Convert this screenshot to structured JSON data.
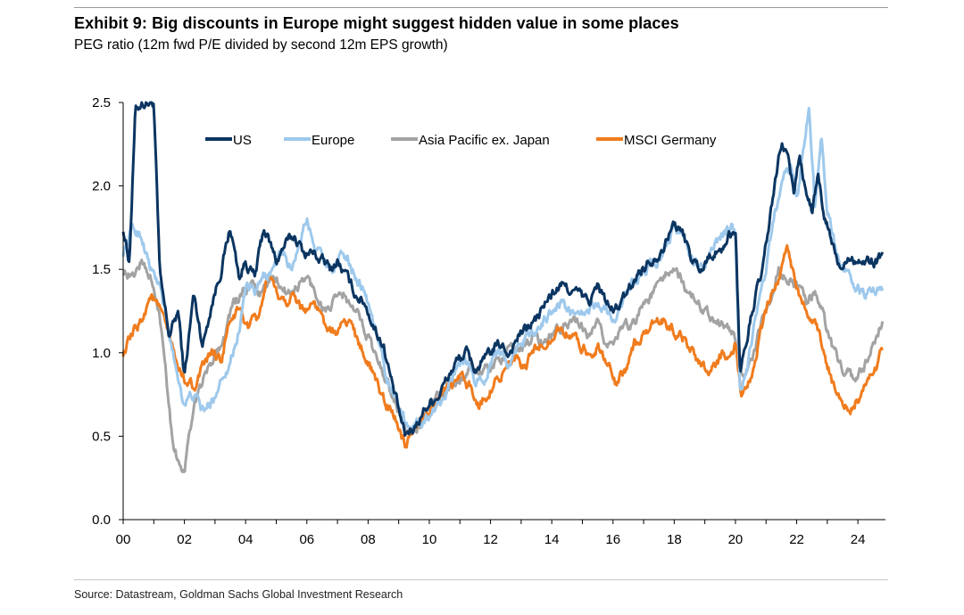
{
  "header": {
    "title": "Exhibit 9: Big discounts in Europe might suggest hidden value in some places",
    "subtitle": "PEG ratio (12m fwd P/E divided by second 12m EPS growth)"
  },
  "footer": {
    "source": "Source: Datastream, Goldman Sachs Global Investment Research"
  },
  "chart_data": {
    "type": "line",
    "title": "Exhibit 9: Big discounts in Europe might suggest hidden value in some places",
    "subtitle": "PEG ratio (12m fwd P/E divided by second 12m EPS growth)",
    "xlabel": "",
    "ylabel": "",
    "xlim": [
      2000,
      2024.9
    ],
    "ylim": [
      0,
      2.5
    ],
    "x_ticks": [
      2000,
      2002,
      2004,
      2006,
      2008,
      2010,
      2012,
      2014,
      2016,
      2018,
      2020,
      2022,
      2024
    ],
    "x_tick_labels": [
      "00",
      "02",
      "04",
      "06",
      "08",
      "10",
      "12",
      "14",
      "16",
      "18",
      "20",
      "22",
      "24"
    ],
    "y_ticks": [
      0,
      0.5,
      1.0,
      1.5,
      2.0,
      2.5
    ],
    "y_tick_labels": [
      "0.0",
      "0.5",
      "1.0",
      "1.5",
      "2.0",
      "2.5"
    ],
    "grid": false,
    "legend_position": "top",
    "series": [
      {
        "name": "US",
        "color": "#0b3561",
        "x": [
          2000,
          2000.2,
          2000.4,
          2000.6,
          2000.8,
          2001,
          2001.2,
          2001.5,
          2001.8,
          2002,
          2002.3,
          2002.6,
          2002.9,
          2003.2,
          2003.5,
          2003.8,
          2004,
          2004.3,
          2004.6,
          2004.8,
          2005,
          2005.3,
          2005.6,
          2005.9,
          2006.2,
          2006.5,
          2006.8,
          2007,
          2007.3,
          2007.6,
          2007.9,
          2008.2,
          2008.5,
          2008.8,
          2009,
          2009.2,
          2009.5,
          2009.8,
          2010,
          2010.3,
          2010.6,
          2010.9,
          2011.2,
          2011.5,
          2011.8,
          2012,
          2012.3,
          2012.6,
          2012.9,
          2013.2,
          2013.5,
          2013.8,
          2014,
          2014.3,
          2014.6,
          2014.9,
          2015.2,
          2015.5,
          2015.8,
          2016,
          2016.3,
          2016.6,
          2016.9,
          2017.2,
          2017.5,
          2017.8,
          2018,
          2018.3,
          2018.6,
          2018.9,
          2019.2,
          2019.5,
          2019.8,
          2020,
          2020.15,
          2020.3,
          2020.6,
          2020.9,
          2021.2,
          2021.5,
          2021.7,
          2021.9,
          2022.1,
          2022.3,
          2022.5,
          2022.7,
          2022.9,
          2023.1,
          2023.4,
          2023.7,
          2024,
          2024.3,
          2024.6,
          2024.8
        ],
        "values": [
          1.75,
          1.55,
          2.45,
          2.5,
          2.5,
          2.5,
          1.45,
          1.1,
          1.25,
          0.85,
          1.35,
          1.05,
          1.3,
          1.5,
          1.75,
          1.45,
          1.55,
          1.45,
          1.75,
          1.65,
          1.55,
          1.65,
          1.7,
          1.6,
          1.6,
          1.55,
          1.5,
          1.55,
          1.45,
          1.35,
          1.3,
          1.15,
          1.05,
          0.8,
          0.65,
          0.5,
          0.55,
          0.65,
          0.7,
          0.75,
          0.85,
          0.95,
          1.0,
          0.9,
          0.95,
          1.0,
          1.05,
          1.0,
          1.1,
          1.15,
          1.2,
          1.3,
          1.35,
          1.4,
          1.38,
          1.35,
          1.3,
          1.4,
          1.3,
          1.25,
          1.3,
          1.4,
          1.5,
          1.55,
          1.6,
          1.7,
          1.78,
          1.7,
          1.55,
          1.5,
          1.6,
          1.6,
          1.7,
          1.75,
          0.9,
          1.0,
          1.3,
          1.5,
          1.9,
          2.25,
          2.2,
          1.95,
          2.2,
          1.95,
          1.85,
          2.05,
          1.8,
          1.7,
          1.5,
          1.6,
          1.55,
          1.55,
          1.55,
          1.6
        ]
      },
      {
        "name": "Europe",
        "color": "#9ec9ec",
        "x": [
          2000,
          2000.3,
          2000.6,
          2000.9,
          2001.2,
          2001.5,
          2001.8,
          2002,
          2002.3,
          2002.6,
          2002.9,
          2003.2,
          2003.5,
          2003.8,
          2004,
          2004.3,
          2004.6,
          2004.9,
          2005.2,
          2005.5,
          2005.8,
          2006,
          2006.3,
          2006.6,
          2006.9,
          2007.2,
          2007.5,
          2007.8,
          2008,
          2008.3,
          2008.6,
          2008.9,
          2009.2,
          2009.5,
          2009.8,
          2010,
          2010.3,
          2010.6,
          2010.9,
          2011.2,
          2011.5,
          2011.8,
          2012,
          2012.3,
          2012.6,
          2012.9,
          2013.2,
          2013.5,
          2013.8,
          2014,
          2014.3,
          2014.6,
          2014.9,
          2015.2,
          2015.5,
          2015.8,
          2016,
          2016.3,
          2016.6,
          2016.9,
          2017.2,
          2017.5,
          2017.8,
          2018,
          2018.3,
          2018.6,
          2018.9,
          2019.2,
          2019.5,
          2019.8,
          2020,
          2020.15,
          2020.3,
          2020.6,
          2020.9,
          2021.2,
          2021.5,
          2021.8,
          2022,
          2022.2,
          2022.4,
          2022.6,
          2022.8,
          2023,
          2023.3,
          2023.6,
          2023.9,
          2024.2,
          2024.5,
          2024.8
        ],
        "values": [
          1.6,
          1.75,
          1.7,
          1.5,
          1.4,
          1.1,
          0.85,
          0.7,
          0.75,
          0.65,
          0.7,
          0.85,
          0.95,
          1.15,
          1.4,
          1.35,
          1.45,
          1.5,
          1.6,
          1.5,
          1.7,
          1.8,
          1.65,
          1.55,
          1.5,
          1.6,
          1.5,
          1.4,
          1.3,
          1.1,
          0.85,
          0.75,
          0.6,
          0.55,
          0.6,
          0.62,
          0.7,
          0.8,
          0.9,
          0.95,
          0.82,
          0.85,
          0.95,
          1.0,
          0.95,
          1.05,
          1.1,
          1.15,
          1.2,
          1.25,
          1.3,
          1.25,
          1.2,
          1.25,
          1.3,
          1.25,
          1.2,
          1.3,
          1.4,
          1.45,
          1.55,
          1.55,
          1.65,
          1.75,
          1.7,
          1.55,
          1.5,
          1.6,
          1.7,
          1.75,
          1.75,
          0.75,
          0.85,
          1.15,
          1.4,
          1.75,
          2.0,
          2.1,
          1.9,
          2.2,
          2.5,
          1.9,
          2.3,
          1.85,
          1.6,
          1.5,
          1.4,
          1.35,
          1.35,
          1.37
        ]
      },
      {
        "name": "Asia Pacific ex. Japan",
        "color": "#a3a3a3",
        "x": [
          2000,
          2000.3,
          2000.6,
          2000.9,
          2001.2,
          2001.4,
          2001.6,
          2001.8,
          2002,
          2002.2,
          2002.5,
          2002.8,
          2003,
          2003.3,
          2003.6,
          2003.9,
          2004.2,
          2004.5,
          2004.8,
          2005.1,
          2005.4,
          2005.7,
          2006,
          2006.3,
          2006.6,
          2006.9,
          2007.2,
          2007.5,
          2007.8,
          2008,
          2008.3,
          2008.6,
          2008.9,
          2009.2,
          2009.5,
          2009.8,
          2010.1,
          2010.4,
          2010.7,
          2011,
          2011.3,
          2011.6,
          2011.9,
          2012.2,
          2012.5,
          2012.8,
          2013.1,
          2013.4,
          2013.7,
          2014,
          2014.3,
          2014.6,
          2014.9,
          2015.2,
          2015.5,
          2015.8,
          2016.1,
          2016.4,
          2016.7,
          2017,
          2017.3,
          2017.6,
          2017.9,
          2018.2,
          2018.5,
          2018.8,
          2019.1,
          2019.4,
          2019.7,
          2020,
          2020.2,
          2020.5,
          2020.8,
          2021.1,
          2021.4,
          2021.7,
          2022,
          2022.3,
          2022.6,
          2022.9,
          2023.2,
          2023.5,
          2023.8,
          2024.1,
          2024.4,
          2024.8
        ],
        "values": [
          1.5,
          1.45,
          1.55,
          1.45,
          1.2,
          0.9,
          0.5,
          0.35,
          0.3,
          0.55,
          0.8,
          0.9,
          1.0,
          1.1,
          1.3,
          1.35,
          1.4,
          1.35,
          1.45,
          1.4,
          1.35,
          1.4,
          1.45,
          1.35,
          1.25,
          1.3,
          1.35,
          1.25,
          1.2,
          1.1,
          0.95,
          0.85,
          0.7,
          0.55,
          0.5,
          0.6,
          0.7,
          0.75,
          0.8,
          0.85,
          0.9,
          0.88,
          0.9,
          0.95,
          1.0,
          1.0,
          1.05,
          1.1,
          1.05,
          1.1,
          1.15,
          1.2,
          1.15,
          1.1,
          1.15,
          1.05,
          1.1,
          1.15,
          1.2,
          1.3,
          1.35,
          1.45,
          1.5,
          1.45,
          1.35,
          1.3,
          1.25,
          1.2,
          1.15,
          1.1,
          0.85,
          0.95,
          1.15,
          1.3,
          1.5,
          1.45,
          1.4,
          1.3,
          1.35,
          1.2,
          1.0,
          0.9,
          0.85,
          0.9,
          1.0,
          1.2
        ]
      },
      {
        "name": "MSCI Germany",
        "color": "#f07c1e",
        "x": [
          2000,
          2000.3,
          2000.6,
          2000.9,
          2001.2,
          2001.5,
          2001.8,
          2002,
          2002.3,
          2002.6,
          2002.9,
          2003.2,
          2003.5,
          2003.8,
          2004.1,
          2004.4,
          2004.7,
          2005,
          2005.3,
          2005.6,
          2005.9,
          2006.2,
          2006.5,
          2006.8,
          2007.1,
          2007.4,
          2007.7,
          2008,
          2008.3,
          2008.6,
          2008.9,
          2009.2,
          2009.5,
          2009.8,
          2010.1,
          2010.4,
          2010.7,
          2011,
          2011.3,
          2011.6,
          2011.9,
          2012.2,
          2012.5,
          2012.8,
          2013.1,
          2013.4,
          2013.7,
          2014,
          2014.3,
          2014.6,
          2014.9,
          2015.2,
          2015.5,
          2015.8,
          2016.1,
          2016.4,
          2016.7,
          2017,
          2017.3,
          2017.6,
          2017.9,
          2018.2,
          2018.5,
          2018.8,
          2019.1,
          2019.4,
          2019.7,
          2020,
          2020.2,
          2020.5,
          2020.8,
          2021.1,
          2021.4,
          2021.7,
          2022,
          2022.3,
          2022.6,
          2022.9,
          2023.2,
          2023.5,
          2023.8,
          2024.1,
          2024.4,
          2024.8
        ],
        "values": [
          1.0,
          1.1,
          1.2,
          1.35,
          1.25,
          1.1,
          0.9,
          0.85,
          0.8,
          0.9,
          1.0,
          0.95,
          1.2,
          1.25,
          1.15,
          1.2,
          1.45,
          1.35,
          1.3,
          1.35,
          1.25,
          1.3,
          1.2,
          1.1,
          1.15,
          1.2,
          1.05,
          0.95,
          0.8,
          0.7,
          0.6,
          0.45,
          0.5,
          0.6,
          0.68,
          0.75,
          0.8,
          0.85,
          0.8,
          0.7,
          0.75,
          0.85,
          0.9,
          0.95,
          0.9,
          1.0,
          1.05,
          1.1,
          1.15,
          1.1,
          1.05,
          1.0,
          1.05,
          0.95,
          0.8,
          0.9,
          1.05,
          1.1,
          1.15,
          1.2,
          1.15,
          1.1,
          1.05,
          0.95,
          0.9,
          0.95,
          1.0,
          1.05,
          0.75,
          0.85,
          1.1,
          1.3,
          1.45,
          1.65,
          1.4,
          1.25,
          1.2,
          1.0,
          0.8,
          0.7,
          0.68,
          0.75,
          0.85,
          1.0
        ]
      }
    ]
  }
}
